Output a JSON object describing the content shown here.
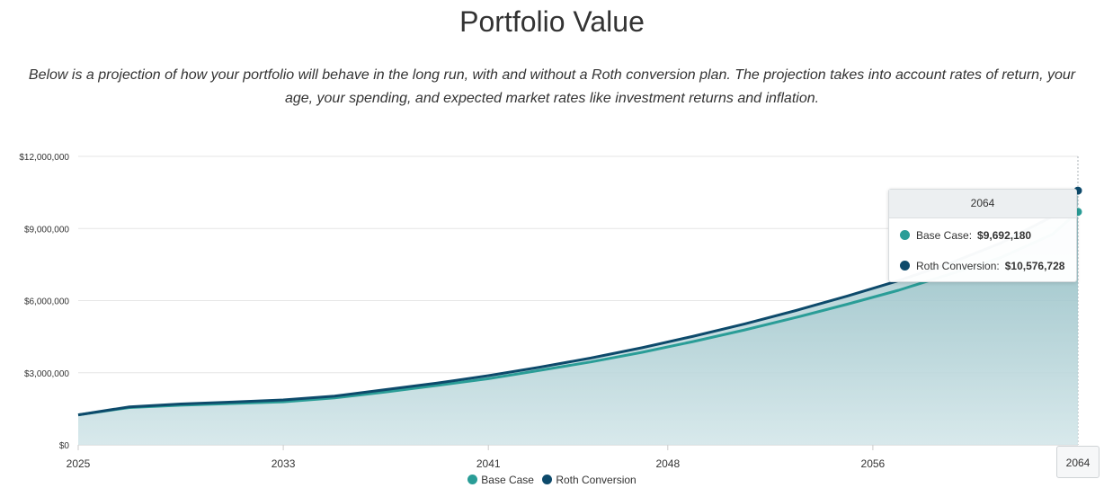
{
  "page": {
    "title": "Portfolio Value",
    "description": "Below is a projection of how your portfolio will behave in the long run, with and without a Roth conversion plan. The projection takes into account rates of return, your age, your spending, and expected market rates like investment returns and inflation."
  },
  "colors": {
    "base_case": "#2a9d97",
    "roth_conversion": "#0d4a6b",
    "area_top": "#86b6bd",
    "area_bottom": "#d3e6e9",
    "grid": "#e6e6e6"
  },
  "chart_data": {
    "type": "area",
    "title": "Portfolio Value",
    "xlabel": "",
    "ylabel": "",
    "x": [
      2025,
      2027,
      2029,
      2031,
      2033,
      2035,
      2037,
      2039,
      2041,
      2043,
      2045,
      2047,
      2049,
      2051,
      2053,
      2055,
      2057,
      2059,
      2061,
      2063,
      2064
    ],
    "xlim": [
      2025,
      2064
    ],
    "x_ticks": [
      2025,
      2033,
      2041,
      2048,
      2056
    ],
    "x_tick_labels": [
      "2025",
      "2033",
      "2041",
      "2048",
      "2056"
    ],
    "ylim": [
      0,
      12000000
    ],
    "y_ticks": [
      0,
      3000000,
      6000000,
      9000000,
      12000000
    ],
    "y_tick_labels": [
      "$0",
      "$3,000,000",
      "$6,000,000",
      "$9,000,000",
      "$12,000,000"
    ],
    "grid": true,
    "legend": "bottom-center",
    "series": [
      {
        "name": "Base Case",
        "values": [
          1250000,
          1550000,
          1650000,
          1720000,
          1790000,
          1950000,
          2200000,
          2470000,
          2750000,
          3100000,
          3450000,
          3850000,
          4300000,
          4780000,
          5300000,
          5850000,
          6430000,
          7100000,
          7800000,
          8750000,
          9692180
        ]
      },
      {
        "name": "Roth Conversion",
        "values": [
          1250000,
          1580000,
          1700000,
          1780000,
          1870000,
          2030000,
          2300000,
          2570000,
          2880000,
          3230000,
          3610000,
          4040000,
          4520000,
          5030000,
          5590000,
          6190000,
          6830000,
          7550000,
          8400000,
          9500000,
          10576728
        ]
      }
    ]
  },
  "tooltip": {
    "year": "2064",
    "base_label": "Base Case:",
    "base_value": "$9,692,180",
    "roth_label": "Roth Conversion:",
    "roth_value": "$10,576,728"
  },
  "crosshair_label": "2064",
  "legend": {
    "base_label": "Base Case",
    "roth_label": "Roth Conversion"
  }
}
